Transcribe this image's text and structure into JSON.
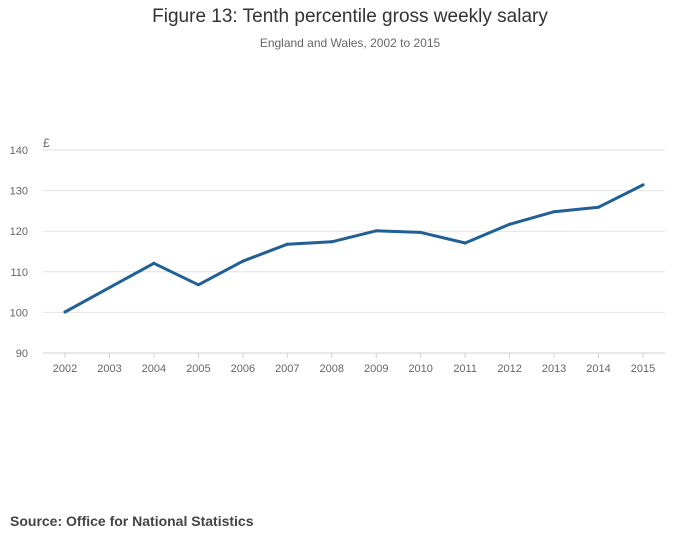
{
  "chart_data": {
    "type": "line",
    "title": "Figure 13: Tenth percentile gross weekly salary",
    "subtitle": "England and Wales, 2002 to 2015",
    "ylabel": "£",
    "xlabel": "",
    "ylim": [
      90,
      140
    ],
    "yticks": [
      90,
      100,
      110,
      120,
      130,
      140
    ],
    "categories": [
      "2002",
      "2003",
      "2004",
      "2005",
      "2006",
      "2007",
      "2008",
      "2009",
      "2010",
      "2011",
      "2012",
      "2013",
      "2014",
      "2015"
    ],
    "series": [
      {
        "name": "Tenth percentile gross weekly salary",
        "values": [
          100.1,
          106.1,
          112.1,
          106.8,
          112.6,
          116.8,
          117.4,
          120.1,
          119.7,
          117.1,
          121.7,
          124.8,
          125.9,
          131.4
        ]
      }
    ],
    "grid": true,
    "colors": {
      "line": "#206095",
      "grid": "#e2e2e2",
      "axis": "#d0d0d0",
      "tick_text": "#666666"
    }
  },
  "source": "Source: Office for National Statistics"
}
